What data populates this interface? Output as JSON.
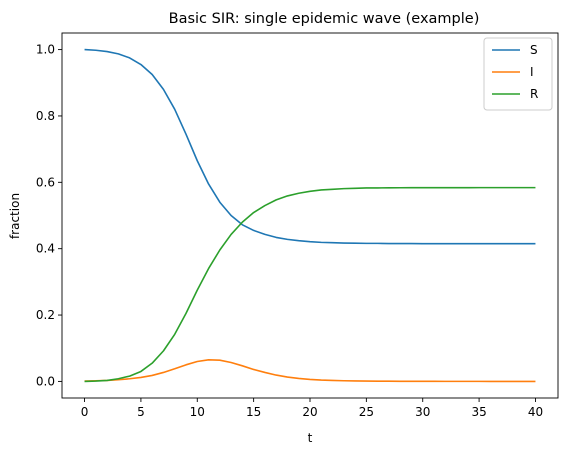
{
  "chart_data": {
    "type": "line",
    "title": "Basic SIR: single epidemic wave (example)",
    "xlabel": "t",
    "ylabel": "fraction",
    "xlim": [
      -2,
      42
    ],
    "ylim": [
      -0.05,
      1.05
    ],
    "xticks": [
      0,
      5,
      10,
      15,
      20,
      25,
      30,
      35,
      40
    ],
    "yticks": [
      0.0,
      0.2,
      0.4,
      0.6,
      0.8,
      1.0
    ],
    "xtick_labels": [
      "0",
      "5",
      "10",
      "15",
      "20",
      "25",
      "30",
      "35",
      "40"
    ],
    "ytick_labels": [
      "0.0",
      "0.2",
      "0.4",
      "0.6",
      "0.8",
      "1.0"
    ],
    "grid": false,
    "legend_position": "top-right",
    "x": [
      0,
      1,
      2,
      3,
      4,
      5,
      6,
      7,
      8,
      9,
      10,
      11,
      12,
      13,
      14,
      15,
      16,
      17,
      18,
      19,
      20,
      21,
      22,
      23,
      24,
      25,
      26,
      27,
      28,
      29,
      30,
      31,
      32,
      33,
      34,
      35,
      36,
      37,
      38,
      39,
      40
    ],
    "series": [
      {
        "name": "S",
        "color": "#1f77b4",
        "values": [
          1.0,
          0.998,
          0.994,
          0.987,
          0.975,
          0.955,
          0.925,
          0.88,
          0.82,
          0.745,
          0.665,
          0.595,
          0.54,
          0.5,
          0.472,
          0.455,
          0.443,
          0.434,
          0.428,
          0.424,
          0.421,
          0.419,
          0.418,
          0.417,
          0.4165,
          0.416,
          0.416,
          0.4155,
          0.4155,
          0.4155,
          0.415,
          0.415,
          0.415,
          0.415,
          0.415,
          0.415,
          0.415,
          0.415,
          0.415,
          0.415,
          0.415
        ]
      },
      {
        "name": "I",
        "color": "#ff7f0e",
        "values": [
          0.001,
          0.002,
          0.003,
          0.005,
          0.008,
          0.012,
          0.018,
          0.027,
          0.038,
          0.05,
          0.06,
          0.065,
          0.064,
          0.057,
          0.047,
          0.036,
          0.027,
          0.019,
          0.013,
          0.009,
          0.006,
          0.004,
          0.003,
          0.002,
          0.0015,
          0.001,
          0.0008,
          0.0006,
          0.0004,
          0.0003,
          0.0002,
          0.0002,
          0.0001,
          0.0001,
          0.0001,
          0.0001,
          0.0,
          0.0,
          0.0,
          0.0,
          0.0
        ]
      },
      {
        "name": "R",
        "color": "#2ca02c",
        "values": [
          0.0,
          0.001,
          0.003,
          0.008,
          0.016,
          0.03,
          0.055,
          0.092,
          0.142,
          0.205,
          0.275,
          0.34,
          0.396,
          0.443,
          0.48,
          0.509,
          0.53,
          0.547,
          0.559,
          0.567,
          0.573,
          0.577,
          0.579,
          0.581,
          0.582,
          0.583,
          0.5832,
          0.5834,
          0.5836,
          0.5837,
          0.5838,
          0.5838,
          0.5839,
          0.5839,
          0.5839,
          0.584,
          0.584,
          0.584,
          0.584,
          0.584,
          0.584
        ]
      }
    ]
  }
}
